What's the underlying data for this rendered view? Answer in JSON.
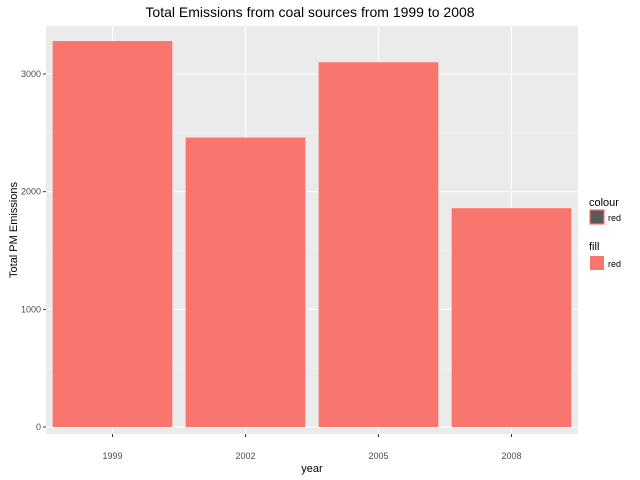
{
  "chart_data": {
    "type": "bar",
    "title": "Total Emissions from coal sources from 1999 to 2008",
    "xlabel": "year",
    "ylabel": "Total PM Emissions",
    "categories": [
      "1999",
      "2002",
      "2005",
      "2008"
    ],
    "values": [
      3280,
      2460,
      3100,
      1860
    ],
    "ylim": [
      0,
      3440
    ],
    "yticks": [
      0,
      1000,
      2000,
      3000
    ],
    "grid": true,
    "legend_placement": "right",
    "colors": {
      "bar_fill": "#F8766D",
      "panel_bg": "#EBEBEB",
      "grid_major": "#FFFFFF",
      "grid_minor": "#F5F5F5",
      "legend_colour_key": "#595959",
      "legend_colour_border": "#F8766D"
    },
    "legends": [
      {
        "title": "colour",
        "label": "red",
        "key": "colour"
      },
      {
        "title": "fill",
        "label": "red",
        "key": "fill"
      }
    ]
  }
}
